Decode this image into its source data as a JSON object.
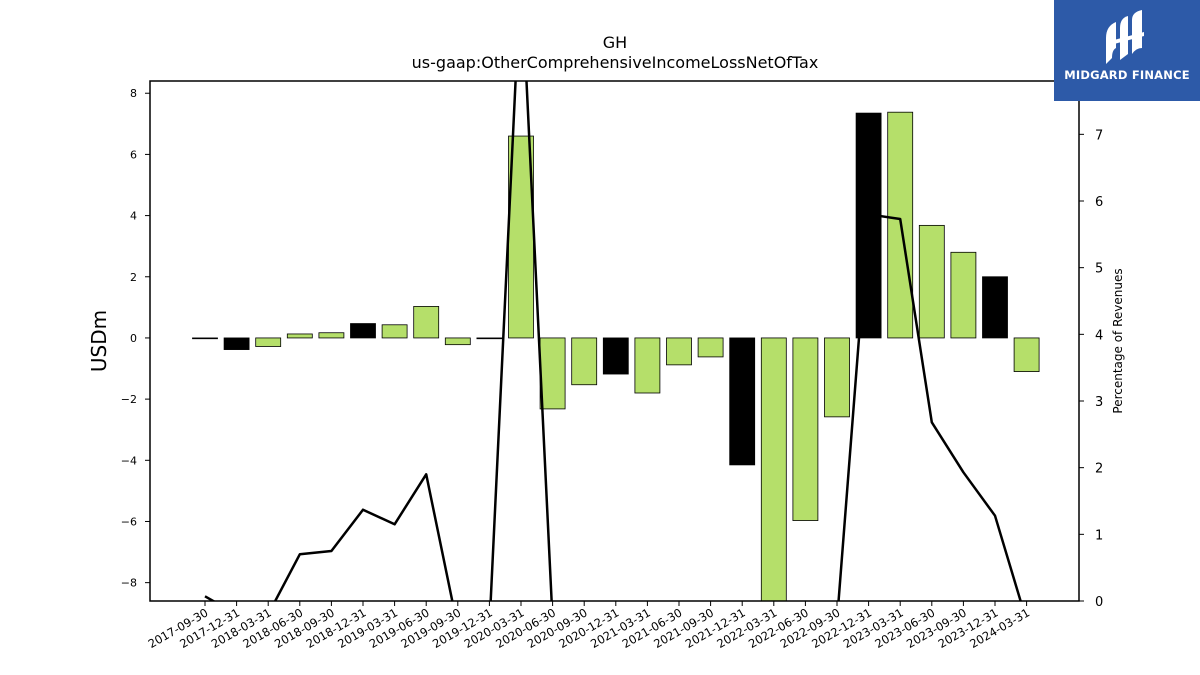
{
  "logo": {
    "text": "MIDGARD FINANCE"
  },
  "chart_data": {
    "type": "bar",
    "title": "GH",
    "subtitle": "us-gaap:OtherComprehensiveIncomeLossNetOfTax",
    "ylabel": "USDm",
    "y2label": "Percentage of Revenues",
    "ylim": [
      -8.6,
      8.4
    ],
    "y2lim": [
      0,
      7.8
    ],
    "yticks": [
      -8,
      -6,
      -4,
      -2,
      0,
      2,
      4,
      6,
      8
    ],
    "y2ticks": [
      0,
      1,
      2,
      3,
      4,
      5,
      6,
      7
    ],
    "categories": [
      "2017-09-30",
      "2017-12-31",
      "2018-03-31",
      "2018-06-30",
      "2018-09-30",
      "2018-12-31",
      "2019-03-31",
      "2019-06-30",
      "2019-09-30",
      "2019-12-31",
      "2020-03-31",
      "2020-06-30",
      "2020-09-30",
      "2020-12-31",
      "2021-03-31",
      "2021-06-30",
      "2021-09-30",
      "2021-12-31",
      "2022-03-31",
      "2022-06-30",
      "2022-09-30",
      "2022-12-31",
      "2023-03-31",
      "2023-06-30",
      "2023-09-30",
      "2023-12-31",
      "2024-03-31"
    ],
    "series": [
      {
        "values": [
          0.0,
          -0.38,
          -0.28,
          0.13,
          0.17,
          0.47,
          0.43,
          1.03,
          -0.22,
          0.0,
          6.6,
          -2.32,
          -1.53,
          -1.18,
          -1.8,
          -0.88,
          -0.62,
          -4.15,
          -8.7,
          -5.97,
          -2.58,
          7.35,
          7.38,
          3.68,
          2.8,
          2.0,
          -1.1
        ],
        "colors": [
          "#000000",
          "#000000",
          "#b5df6a",
          "#b5df6a",
          "#b5df6a",
          "#000000",
          "#b5df6a",
          "#b5df6a",
          "#b5df6a",
          "#000000",
          "#b5df6a",
          "#b5df6a",
          "#b5df6a",
          "#000000",
          "#b5df6a",
          "#b5df6a",
          "#b5df6a",
          "#000000",
          "#b5df6a",
          "#b5df6a",
          "#b5df6a",
          "#000000",
          "#b5df6a",
          "#b5df6a",
          "#b5df6a",
          "#000000",
          "#b5df6a"
        ]
      },
      {
        "type": "line",
        "axis": "right",
        "color": "#000000",
        "values": [
          0.07,
          -0.2,
          -0.2,
          0.7,
          0.75,
          1.37,
          1.15,
          1.9,
          -0.4,
          -0.4,
          9.5,
          -0.3,
          null,
          null,
          null,
          null,
          null,
          null,
          null,
          null,
          -0.3,
          5.8,
          5.73,
          2.68,
          1.93,
          1.28,
          -0.3
        ]
      }
    ]
  }
}
